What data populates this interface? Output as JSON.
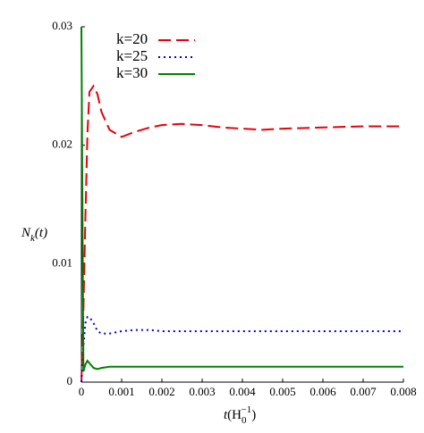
{
  "chart_data": {
    "type": "line",
    "y_label": [
      "N",
      "k",
      "(t)"
    ],
    "x_label": [
      "t",
      "(H",
      "0",
      "−1",
      ")"
    ],
    "x": [
      0,
      5e-05,
      0.0001,
      0.00015,
      0.0002,
      0.0003,
      0.0004,
      0.0005,
      0.0007,
      0.001,
      0.0013,
      0.0017,
      0.002,
      0.0025,
      0.003,
      0.0035,
      0.004,
      0.0045,
      0.005,
      0.006,
      0.007,
      0.008
    ],
    "series": [
      {
        "name": "k=20",
        "color": "#e8000b",
        "dash": "dashed",
        "values": [
          0,
          0.006,
          0.014,
          0.021,
          0.0245,
          0.025,
          0.0243,
          0.0228,
          0.0213,
          0.0207,
          0.0211,
          0.0215,
          0.0217,
          0.0218,
          0.0217,
          0.0215,
          0.0214,
          0.0213,
          0.0214,
          0.0215,
          0.0216,
          0.0216
        ]
      },
      {
        "name": "k=25",
        "color": "#0000d0",
        "dash": "dotted",
        "values": [
          0,
          0.003,
          0.005,
          0.0055,
          0.0055,
          0.005,
          0.0043,
          0.0041,
          0.0041,
          0.0043,
          0.0044,
          0.0044,
          0.0043,
          0.0043,
          0.0043,
          0.0043,
          0.0043,
          0.0043,
          0.0043,
          0.0043,
          0.0043,
          0.0043
        ]
      },
      {
        "name": "k=30",
        "color": "#008000",
        "dash": "solid",
        "values": [
          0.03,
          0.0009,
          0.0015,
          0.0018,
          0.0016,
          0.0012,
          0.0011,
          0.0012,
          0.0013,
          0.0013,
          0.0013,
          0.0013,
          0.0013,
          0.0013,
          0.0013,
          0.0013,
          0.0013,
          0.0013,
          0.0013,
          0.0013,
          0.0013,
          0.0013
        ]
      }
    ],
    "xlim": [
      0,
      0.008
    ],
    "xticks": [
      0,
      0.001,
      0.002,
      0.003,
      0.004,
      0.005,
      0.006,
      0.007,
      0.008
    ],
    "ylim": [
      0,
      0.03
    ],
    "yticks": [
      0,
      0.01,
      0.02,
      0.03
    ],
    "legend": "upper-left"
  }
}
